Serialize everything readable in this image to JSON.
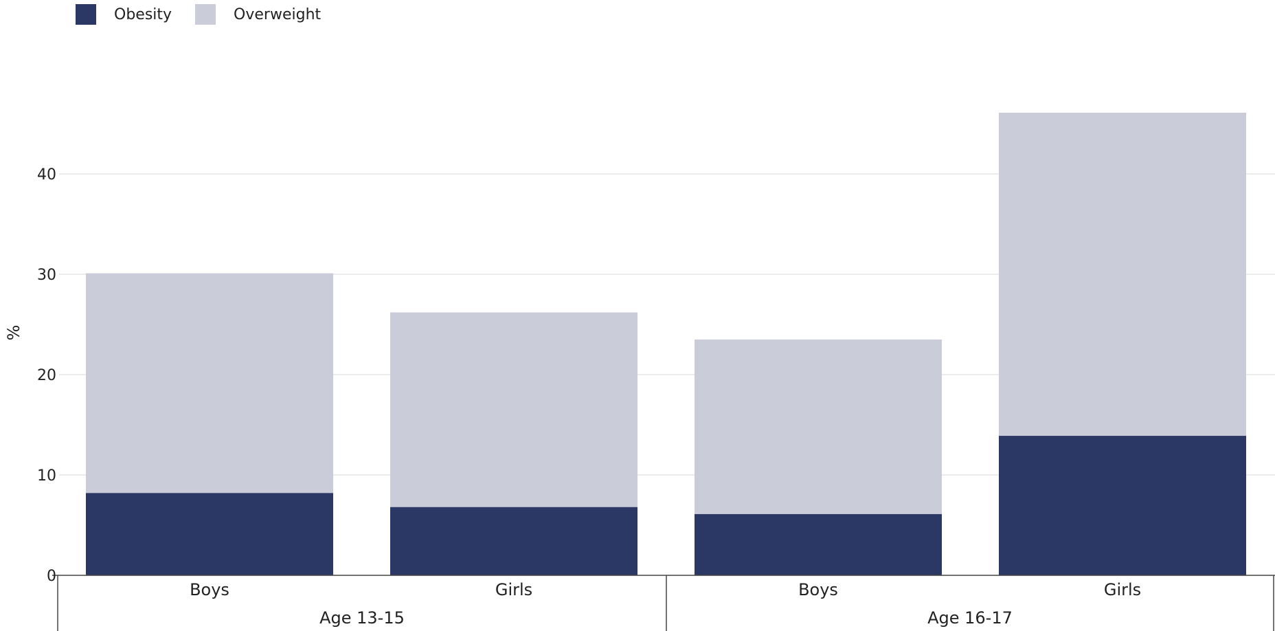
{
  "legend": {
    "obesity_label": "Obesity",
    "overweight_label": "Overweight"
  },
  "colors": {
    "obesity": "#2b3765",
    "overweight": "#cacdd9",
    "grid": "#e6e6e6",
    "axis": "#444444"
  },
  "chart_data": {
    "type": "bar",
    "stacked": true,
    "ylabel": "%",
    "ylim": [
      0,
      50
    ],
    "yticks": [
      0,
      10,
      20,
      30,
      40
    ],
    "grid": true,
    "legend_position": "top-left",
    "groups": [
      {
        "label": "Age 13-15",
        "categories": [
          "Boys",
          "Girls"
        ]
      },
      {
        "label": "Age 16-17",
        "categories": [
          "Boys",
          "Girls"
        ]
      }
    ],
    "categories": [
      "Boys",
      "Girls",
      "Boys",
      "Girls"
    ],
    "series": [
      {
        "name": "Obesity",
        "values": [
          8.2,
          6.8,
          6.1,
          13.9
        ]
      },
      {
        "name": "Overweight",
        "values": [
          21.9,
          19.4,
          17.4,
          32.2
        ]
      }
    ]
  }
}
